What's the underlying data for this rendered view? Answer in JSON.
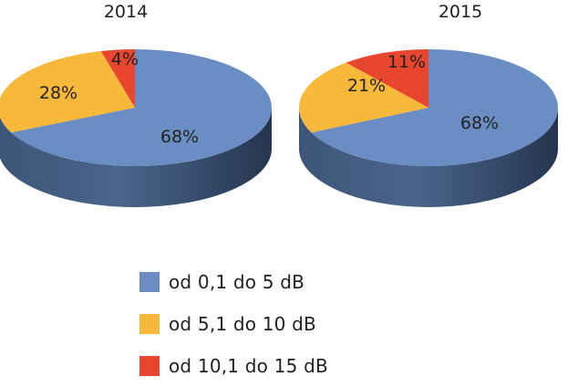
{
  "chart_data": {
    "type": "pie",
    "style": "3d",
    "categories": [
      "od 0,1 do 5 dB",
      "od 5,1 do 10 dB",
      "od 10,1 do 15 dB"
    ],
    "colors": [
      "#6a8ec4",
      "#f8b839",
      "#e8462f"
    ],
    "charts": [
      {
        "title": "2014",
        "values": [
          68,
          28,
          4
        ],
        "labels": [
          "68%",
          "28%",
          "4%"
        ]
      },
      {
        "title": "2015",
        "values": [
          68,
          21,
          11
        ],
        "labels": [
          "68%",
          "21%",
          "11%"
        ]
      }
    ],
    "legend": {
      "position": "bottom",
      "items": [
        {
          "label": "od 0,1 do 5 dB",
          "color": "#6a8ec4"
        },
        {
          "label": "od 5,1 do 10 dB",
          "color": "#f8b839"
        },
        {
          "label": "od 10,1 do 15 dB",
          "color": "#e8462f"
        }
      ]
    }
  }
}
